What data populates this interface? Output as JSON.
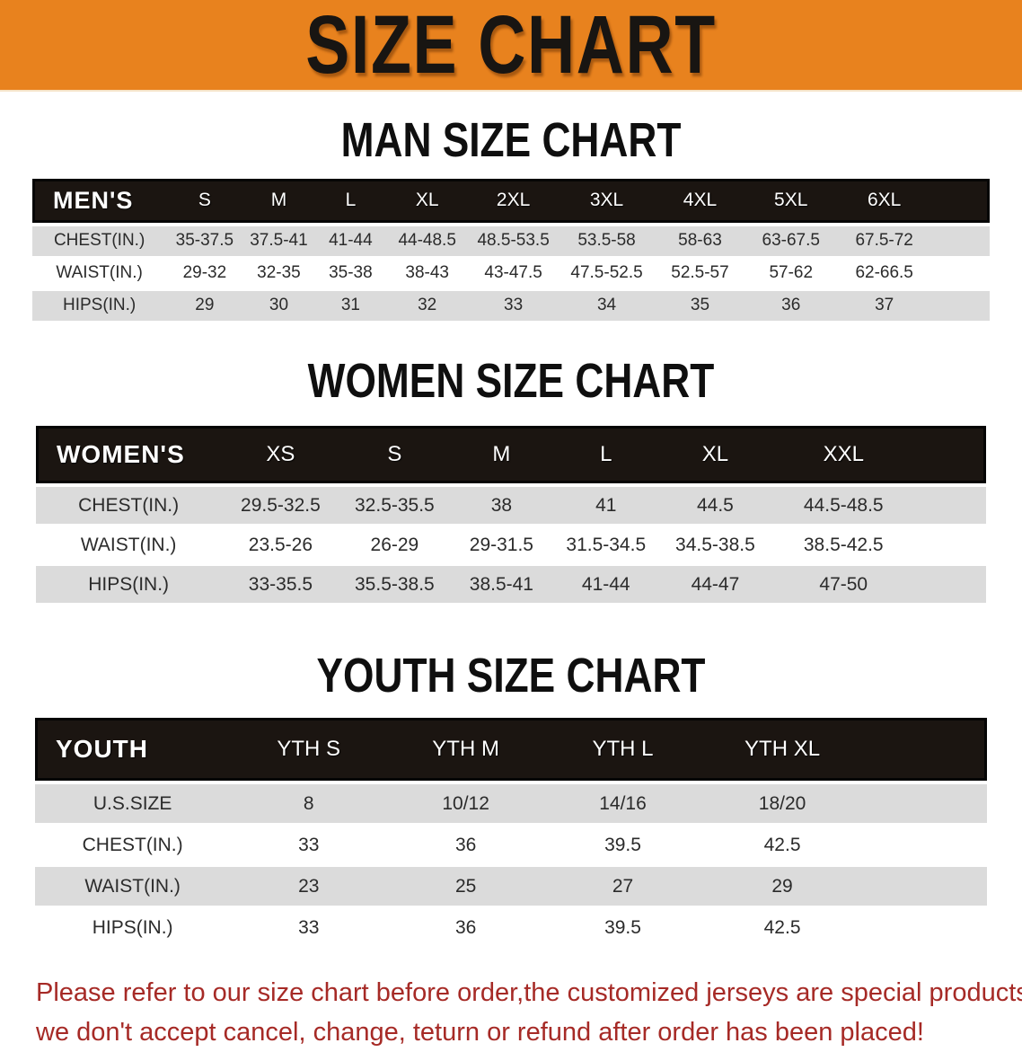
{
  "banner": {
    "title": "SIZE CHART"
  },
  "colors": {
    "banner_bg": "#E8821E",
    "header_bar": "#1B1511",
    "row_gray": "#DBDBDB",
    "disclaimer_red": "#A62A26"
  },
  "men": {
    "heading": "MAN SIZE CHART",
    "table": {
      "corner": "MEN'S",
      "columns": [
        "S",
        "M",
        "L",
        "XL",
        "2XL",
        "3XL",
        "4XL",
        "5XL",
        "6XL"
      ],
      "rows": [
        {
          "label": "CHEST(IN.)",
          "values": [
            "35-37.5",
            "37.5-41",
            "41-44",
            "44-48.5",
            "48.5-53.5",
            "53.5-58",
            "58-63",
            "63-67.5",
            "67.5-72"
          ]
        },
        {
          "label": "WAIST(IN.)",
          "values": [
            "29-32",
            "32-35",
            "35-38",
            "38-43",
            "43-47.5",
            "47.5-52.5",
            "52.5-57",
            "57-62",
            "62-66.5"
          ]
        },
        {
          "label": "HIPS(IN.)",
          "values": [
            "29",
            "30",
            "31",
            "32",
            "33",
            "34",
            "35",
            "36",
            "37"
          ]
        }
      ]
    }
  },
  "women": {
    "heading": "WOMEN SIZE CHART",
    "table": {
      "corner": "WOMEN'S",
      "columns": [
        "XS",
        "S",
        "M",
        "L",
        "XL",
        "XXL"
      ],
      "rows": [
        {
          "label": "CHEST(IN.)",
          "values": [
            "29.5-32.5",
            "32.5-35.5",
            "38",
            "41",
            "44.5",
            "44.5-48.5"
          ]
        },
        {
          "label": "WAIST(IN.)",
          "values": [
            "23.5-26",
            "26-29",
            "29-31.5",
            "31.5-34.5",
            "34.5-38.5",
            "38.5-42.5"
          ]
        },
        {
          "label": "HIPS(IN.)",
          "values": [
            "33-35.5",
            "35.5-38.5",
            "38.5-41",
            "41-44",
            "44-47",
            "47-50"
          ]
        }
      ]
    }
  },
  "youth": {
    "heading": "YOUTH SIZE CHART",
    "table": {
      "corner": "YOUTH",
      "columns": [
        "YTH S",
        "YTH M",
        "YTH L",
        "YTH XL"
      ],
      "rows": [
        {
          "label": "U.S.SIZE",
          "values": [
            "8",
            "10/12",
            "14/16",
            "18/20"
          ]
        },
        {
          "label": "CHEST(IN.)",
          "values": [
            "33",
            "36",
            "39.5",
            "42.5"
          ]
        },
        {
          "label": "WAIST(IN.)",
          "values": [
            "23",
            "25",
            "27",
            "29"
          ]
        },
        {
          "label": "HIPS(IN.)",
          "values": [
            "33",
            "36",
            "39.5",
            "42.5"
          ]
        }
      ]
    }
  },
  "disclaimer": {
    "lines": [
      "Please refer to our size chart before order,the customized jerseys are special products,",
      "we don't accept cancel, change, teturn or refund after order has been placed!"
    ]
  }
}
